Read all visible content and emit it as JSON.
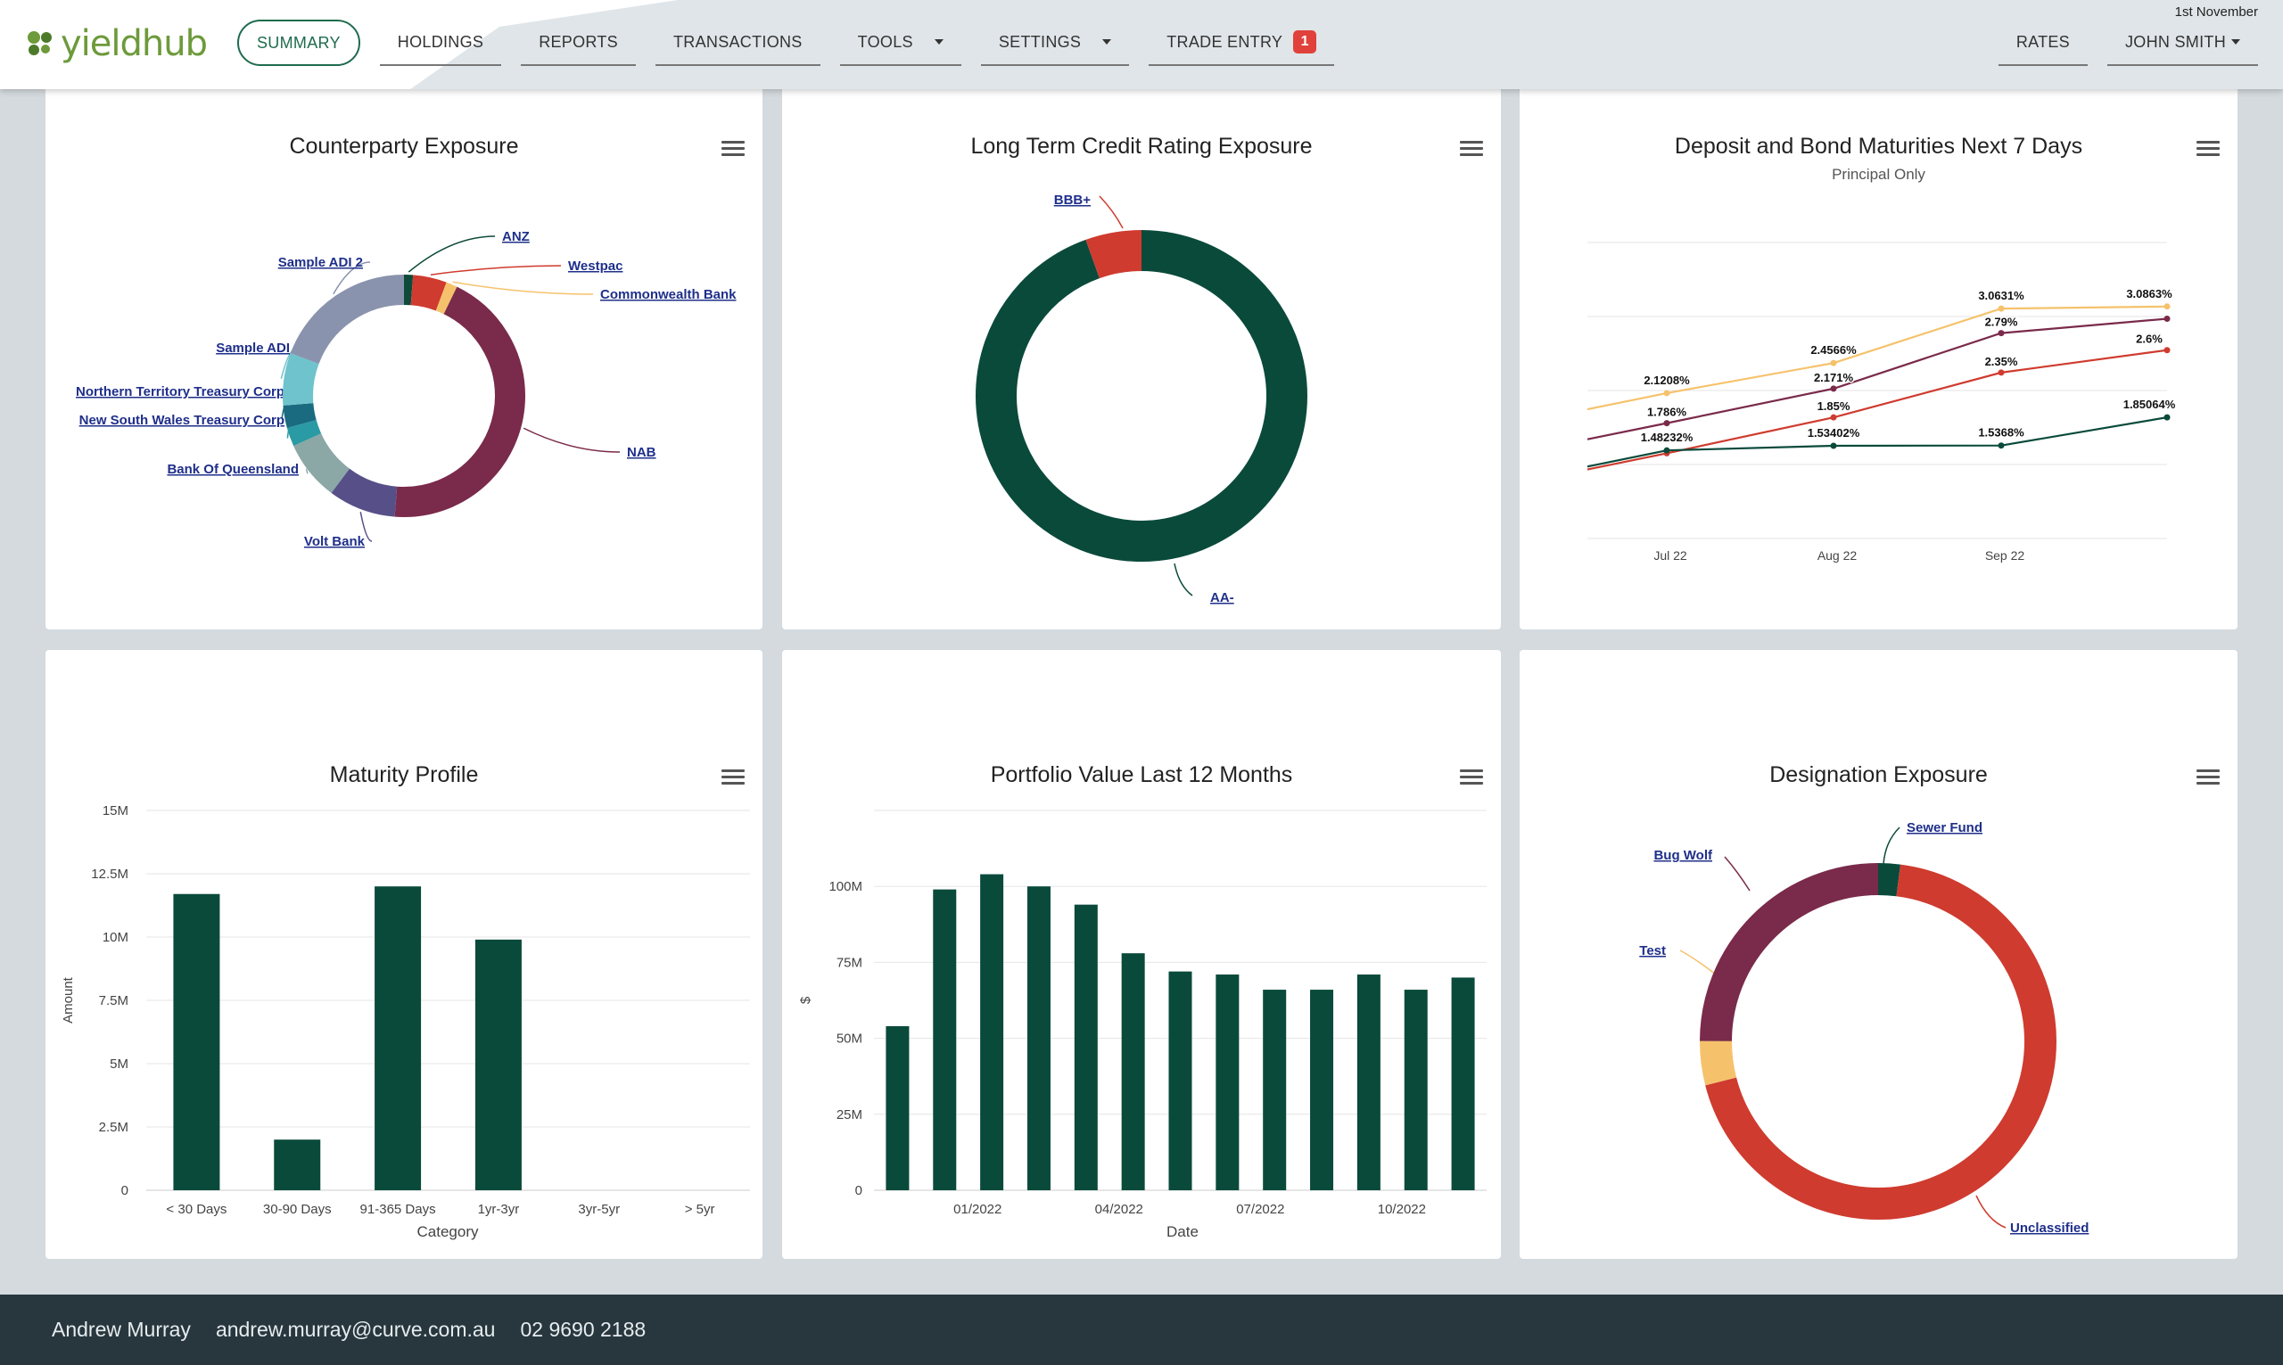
{
  "header": {
    "brand": "yieldhub",
    "date": "1st November",
    "nav": [
      {
        "label": "SUMMARY"
      },
      {
        "label": "HOLDINGS"
      },
      {
        "label": "REPORTS"
      },
      {
        "label": "TRANSACTIONS"
      },
      {
        "label": "TOOLS"
      },
      {
        "label": "SETTINGS"
      },
      {
        "label": "TRADE ENTRY"
      }
    ],
    "trade_entry_badge": "1",
    "right_nav": {
      "rates": "RATES",
      "user": "JOHN SMITH"
    }
  },
  "panels": {
    "counterparty": {
      "title": "Counterparty Exposure"
    },
    "credit": {
      "title": "Long Term Credit Rating Exposure"
    },
    "maturities": {
      "title": "Deposit and Bond Maturities Next 7 Days",
      "subtitle": "Principal Only"
    },
    "maturity_profile": {
      "title": "Maturity Profile"
    },
    "portfolio": {
      "title": "Portfolio Value Last 12 Months"
    },
    "designation": {
      "title": "Designation Exposure"
    }
  },
  "chart_data": [
    {
      "id": "counterparty",
      "type": "pie",
      "title": "Counterparty Exposure",
      "slices": [
        {
          "label": "ANZ",
          "value": 1.2,
          "color": "#0e4a3a"
        },
        {
          "label": "Westpac",
          "value": 4.5,
          "color": "#cf3b2f"
        },
        {
          "label": "Commonwealth Bank",
          "value": 1.5,
          "color": "#f5c26b"
        },
        {
          "label": "NAB",
          "value": 44,
          "color": "#7a2a4a"
        },
        {
          "label": "Volt Bank",
          "value": 9,
          "color": "#574f88"
        },
        {
          "label": "Bank Of Queensland",
          "value": 8,
          "color": "#8ba7a6"
        },
        {
          "label": "New South Wales Treasury Corp",
          "value": 2.5,
          "color": "#2a9aa4"
        },
        {
          "label": "Northern Territory Treasury Corp",
          "value": 3,
          "color": "#1a6a80"
        },
        {
          "label": "Sample ADI",
          "value": 7,
          "color": "#6fc3cc"
        },
        {
          "label": "Sample ADI 2",
          "value": 19.3,
          "color": "#8a93ad"
        }
      ]
    },
    {
      "id": "credit",
      "type": "pie",
      "title": "Long Term Credit Rating Exposure",
      "slices": [
        {
          "label": "AA-",
          "value": 94.5,
          "color": "#0a4a3b"
        },
        {
          "label": "BBB+",
          "value": 5.5,
          "color": "#cf3b2f"
        }
      ]
    },
    {
      "id": "maturities",
      "type": "line",
      "title": "Deposit and Bond Maturities Next 7 Days",
      "subtitle": "Principal Only",
      "x": [
        "Jul 22",
        "Aug 22",
        "Sep 22",
        ""
      ],
      "ylim": [
        0.5,
        3.8
      ],
      "series": [
        {
          "name": "Series 1",
          "color": "#f5c26b",
          "values": [
            2.1208,
            2.4566,
            3.0631,
            3.0863
          ],
          "labels": [
            "2.1208%",
            "2.4566%",
            "3.0631%",
            "3.0863%"
          ]
        },
        {
          "name": "Series 2",
          "color": "#7a2a4a",
          "values": [
            1.786,
            2.171,
            2.79,
            2.95
          ],
          "labels": [
            "1.786%",
            "2.171%",
            "2.79%",
            ""
          ]
        },
        {
          "name": "Series 3",
          "color": "#cf3b2f",
          "values": [
            1.45,
            1.85,
            2.35,
            2.6
          ],
          "labels": [
            "",
            "1.85%",
            "2.35%",
            "2.6%"
          ]
        },
        {
          "name": "Series 4",
          "color": "#0a4a3b",
          "values": [
            1.48232,
            1.53402,
            1.5368,
            1.85064
          ],
          "labels": [
            "1.48232%",
            "1.53402%",
            "1.5368%",
            "1.85064%"
          ]
        }
      ]
    },
    {
      "id": "maturity_profile",
      "type": "bar",
      "title": "Maturity Profile",
      "xlabel": "Category",
      "ylabel": "Amount",
      "categories": [
        "< 30 Days",
        "30-90 Days",
        "91-365 Days",
        "1yr-3yr",
        "3yr-5yr",
        "> 5yr"
      ],
      "values": [
        11.7,
        2.0,
        12.0,
        9.9,
        0,
        0
      ],
      "yticks": [
        "0",
        "2.5M",
        "5M",
        "7.5M",
        "10M",
        "12.5M",
        "15M"
      ],
      "ylim": [
        0,
        15
      ]
    },
    {
      "id": "portfolio",
      "type": "bar",
      "title": "Portfolio Value Last 12 Months",
      "xlabel": "Date",
      "ylabel": "$",
      "values": [
        54,
        99,
        104,
        100,
        94,
        78,
        72,
        71,
        66,
        66,
        71,
        66,
        70
      ],
      "xticks": [
        "01/2022",
        "04/2022",
        "07/2022",
        "10/2022"
      ],
      "yticks": [
        "0",
        "25M",
        "50M",
        "75M",
        "100M"
      ],
      "ylim": [
        0,
        125
      ]
    },
    {
      "id": "designation",
      "type": "pie",
      "title": "Designation Exposure",
      "slices": [
        {
          "label": "Sewer Fund",
          "value": 2,
          "color": "#0a4a3b"
        },
        {
          "label": "Unclassified",
          "value": 69,
          "color": "#cf3b2f"
        },
        {
          "label": "Test",
          "value": 4,
          "color": "#f5c26b"
        },
        {
          "label": "Bug Wolf",
          "value": 25,
          "color": "#7a2a4a"
        }
      ]
    }
  ],
  "footer": {
    "name": "Andrew Murray",
    "email": "andrew.murray@curve.com.au",
    "phone": "02 9690 2188"
  }
}
